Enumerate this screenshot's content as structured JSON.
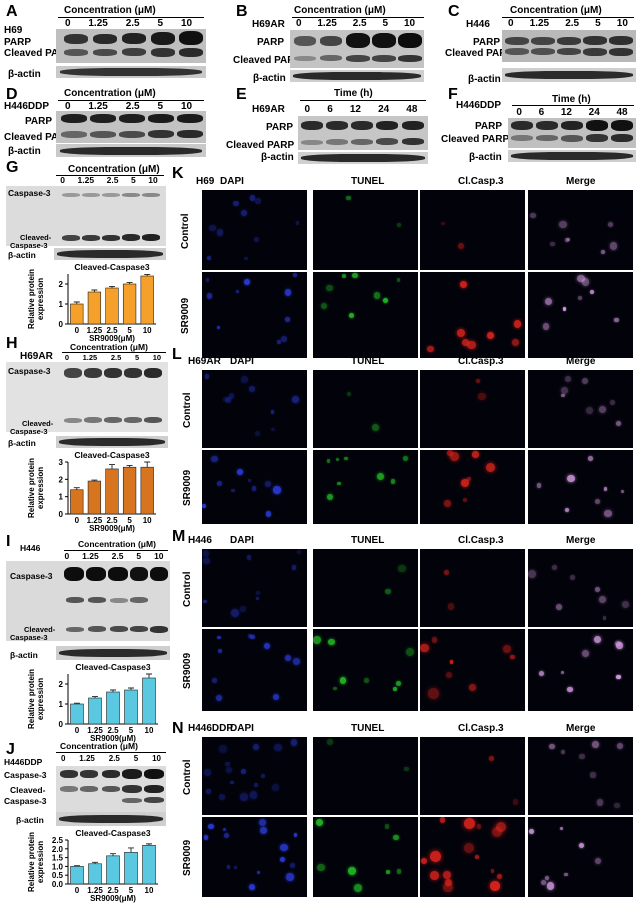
{
  "panels": {
    "A": {
      "letter": "A",
      "cell": "H69",
      "header": "Concentration (μM)",
      "ticks": [
        "0",
        "1.25",
        "2.5",
        "5",
        "10"
      ],
      "bands": [
        "PARP",
        "Cleaved PARP",
        "β-actin"
      ]
    },
    "B": {
      "letter": "B",
      "cell": "H69AR",
      "header": "Concentration (μM)",
      "ticks": [
        "0",
        "1.25",
        "2.5",
        "5",
        "10"
      ],
      "bands": [
        "PARP",
        "Cleaved PARP",
        "β-actin"
      ]
    },
    "C": {
      "letter": "C",
      "cell": "H446",
      "header": "Concentration (μM)",
      "ticks": [
        "0",
        "1.25",
        "2.5",
        "5",
        "10"
      ],
      "bands": [
        "PARP",
        "Cleaved PARP",
        "β-actin"
      ]
    },
    "D": {
      "letter": "D",
      "cell": "H446DDP",
      "header": "Concentration (μM)",
      "ticks": [
        "0",
        "1.25",
        "2.5",
        "5",
        "10"
      ],
      "bands": [
        "PARP",
        "Cleaved PARP",
        "β-actin"
      ]
    },
    "E": {
      "letter": "E",
      "cell": "H69AR",
      "header": "Time (h)",
      "ticks": [
        "0",
        "6",
        "12",
        "24",
        "48"
      ],
      "bands": [
        "PARP",
        "Cleaved PARP",
        "β-actin"
      ]
    },
    "F": {
      "letter": "F",
      "cell": "H446DDP",
      "header": "Time (h)",
      "ticks": [
        "0",
        "6",
        "12",
        "24",
        "48"
      ],
      "bands": [
        "PARP",
        "Cleaved PARP",
        "β-actin"
      ]
    },
    "G": {
      "letter": "G",
      "header": "Concentration (μM)",
      "ticks": [
        "0",
        "1.25",
        "2.5",
        "5",
        "10"
      ],
      "bands": [
        "Caspase-3",
        "Cleaved-",
        "Caspase-3",
        "β-actin"
      ]
    },
    "H": {
      "letter": "H",
      "cell": "H69AR",
      "header": "Concentration (μM)",
      "ticks": [
        "0",
        "1.25",
        "2.5",
        "5",
        "10"
      ],
      "bands": [
        "Caspase-3",
        "Cleaved-",
        "Caspase-3",
        "β-actin"
      ]
    },
    "I": {
      "letter": "I",
      "cell": "H446",
      "header": "Concentration (μM)",
      "ticks": [
        "0",
        "1.25",
        "2.5",
        "5",
        "10"
      ],
      "bands": [
        "Caspase-3",
        "Cleaved-",
        "Caspase-3",
        "β-actin"
      ]
    },
    "J": {
      "letter": "J",
      "cell": "H446DDP",
      "header": "Concentration (μM)",
      "ticks": [
        "0",
        "1.25",
        "2.5",
        "5",
        "10"
      ],
      "bands": [
        "Caspase-3",
        "Cleaved-",
        "Caspase-3",
        "β-actin"
      ]
    },
    "K": {
      "letter": "K",
      "cell": "H69",
      "cols": [
        "DAPI",
        "TUNEL",
        "Cl.Casp.3",
        "Merge"
      ],
      "rows": [
        "Control",
        "SR9009"
      ]
    },
    "L": {
      "letter": "L",
      "cell": "H69AR",
      "cols": [
        "DAPI",
        "TUNEL",
        "Cl.Casp.3",
        "Merge"
      ],
      "rows": [
        "Control",
        "SR9009"
      ]
    },
    "M": {
      "letter": "M",
      "cell": "H446",
      "cols": [
        "DAPI",
        "TUNEL",
        "Cl.Casp.3",
        "Merge"
      ],
      "rows": [
        "Control",
        "SR9009"
      ]
    },
    "N": {
      "letter": "N",
      "cell": "H446DDP",
      "cols": [
        "DAPI",
        "TUNEL",
        "Cl.Casp.3",
        "Merge"
      ],
      "rows": [
        "Control",
        "SR9009"
      ]
    }
  },
  "chart_data": [
    {
      "type": "bar",
      "panel": "G",
      "title": "Cleaved-Caspase3",
      "categories": [
        "0",
        "1.25",
        "2.5",
        "5",
        "10"
      ],
      "values": [
        1.0,
        1.6,
        1.8,
        2.0,
        2.4
      ],
      "errors": [
        0.1,
        0.1,
        0.08,
        0.08,
        0.08
      ],
      "ylim": [
        0,
        2.5
      ],
      "yticks": [
        "0",
        "1",
        "2"
      ],
      "ylabel": "Relative protein expression",
      "xlabel": "SR9009(μM)",
      "color": "#f5a02a"
    },
    {
      "type": "bar",
      "panel": "H",
      "title": "Cleaved-Caspase3",
      "categories": [
        "0",
        "1.25",
        "2.5",
        "5",
        "10"
      ],
      "values": [
        1.4,
        1.9,
        2.6,
        2.7,
        2.7
      ],
      "errors": [
        0.12,
        0.06,
        0.25,
        0.1,
        0.3
      ],
      "ylim": [
        0,
        3
      ],
      "yticks": [
        "0",
        "1",
        "2",
        "3"
      ],
      "ylabel": "Relative protein expression",
      "xlabel": "SR9009(μM)",
      "color": "#d6741f"
    },
    {
      "type": "bar",
      "panel": "I",
      "title": "Cleaved-Caspase3",
      "categories": [
        "0",
        "1.25",
        "2.5",
        "5",
        "10"
      ],
      "values": [
        1.0,
        1.3,
        1.6,
        1.7,
        2.3
      ],
      "errors": [
        0.04,
        0.07,
        0.1,
        0.1,
        0.2
      ],
      "ylim": [
        0,
        2.5
      ],
      "yticks": [
        "0",
        "1",
        "2"
      ],
      "ylabel": "Relative protein expression",
      "xlabel": "SR9009(μM)",
      "color": "#5ac8e0"
    },
    {
      "type": "bar",
      "panel": "J",
      "title": "Cleaved-Caspase3",
      "categories": [
        "0",
        "1.25",
        "2.5",
        "5",
        "10"
      ],
      "values": [
        1.0,
        1.15,
        1.6,
        1.8,
        2.2
      ],
      "errors": [
        0.04,
        0.08,
        0.12,
        0.25,
        0.08
      ],
      "ylim": [
        0,
        2.5
      ],
      "yticks": [
        "0.0",
        "0.5",
        "1.0",
        "1.5",
        "2.0",
        "2.5"
      ],
      "ylabel": "Relative protein expression",
      "xlabel": "SR9009(μM)",
      "color": "#5ac8e0"
    }
  ],
  "colors": {
    "dapi": "#2a3bd9",
    "tunel": "#22c025",
    "casp": "#e0241e",
    "merge": "#d9a0e8",
    "bg": "#02020a"
  }
}
